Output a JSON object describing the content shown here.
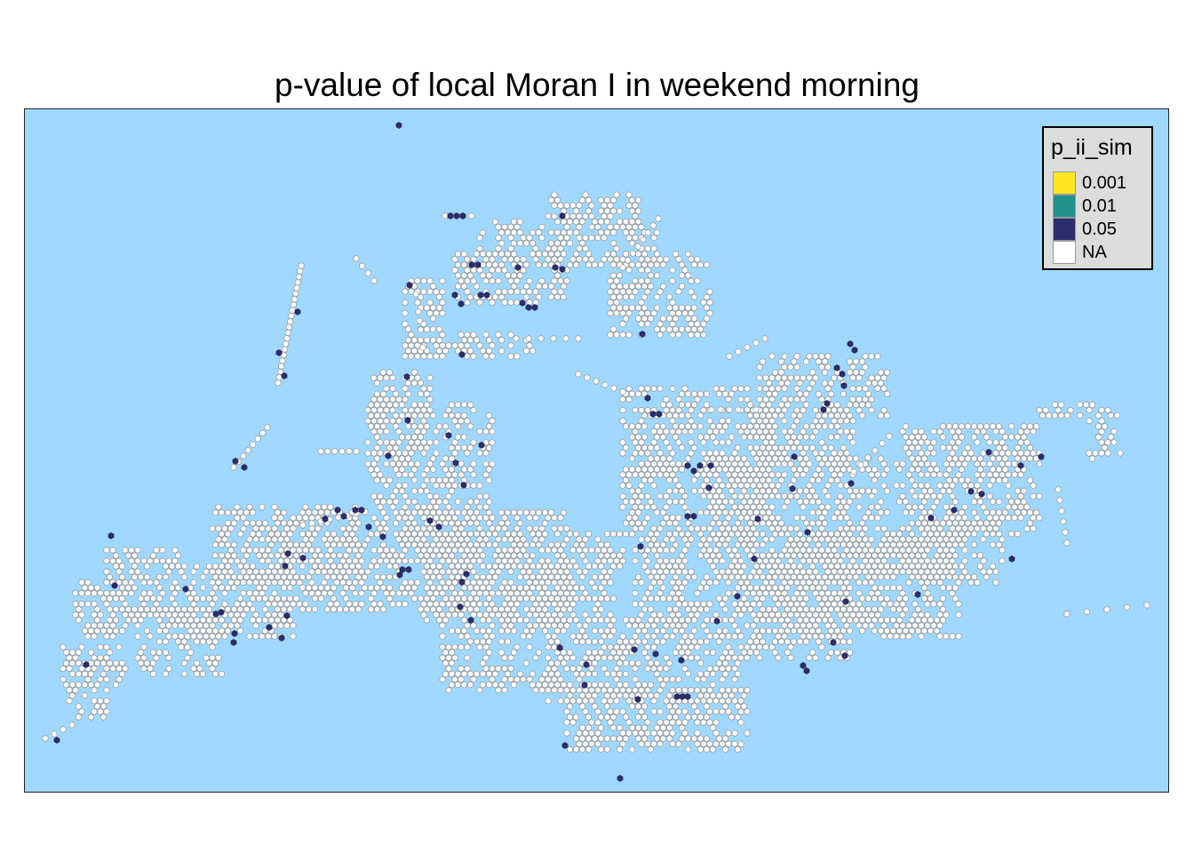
{
  "title": "p-value of local Moran I in weekend morning",
  "colors": {
    "water": "#a0d8fd",
    "frame_border": "#222222",
    "cell_na": "#ffffff",
    "cell_stroke": "#8a8a8a",
    "p_0_001": "#fde725",
    "p_0_01": "#21918c",
    "p_0_05": "#2d2d6e"
  },
  "legend": {
    "title": "p_ii_sim",
    "items": [
      {
        "label": "0.001",
        "color": "#fde725"
      },
      {
        "label": "0.01",
        "color": "#21918c"
      },
      {
        "label": "0.05",
        "color": "#2d2d6e"
      },
      {
        "label": "NA",
        "color": "#ffffff"
      }
    ]
  },
  "map": {
    "type": "hexagon grid (local Moran I p-values)",
    "significant_cells_category": "0.05",
    "other_cells_category": "NA"
  }
}
